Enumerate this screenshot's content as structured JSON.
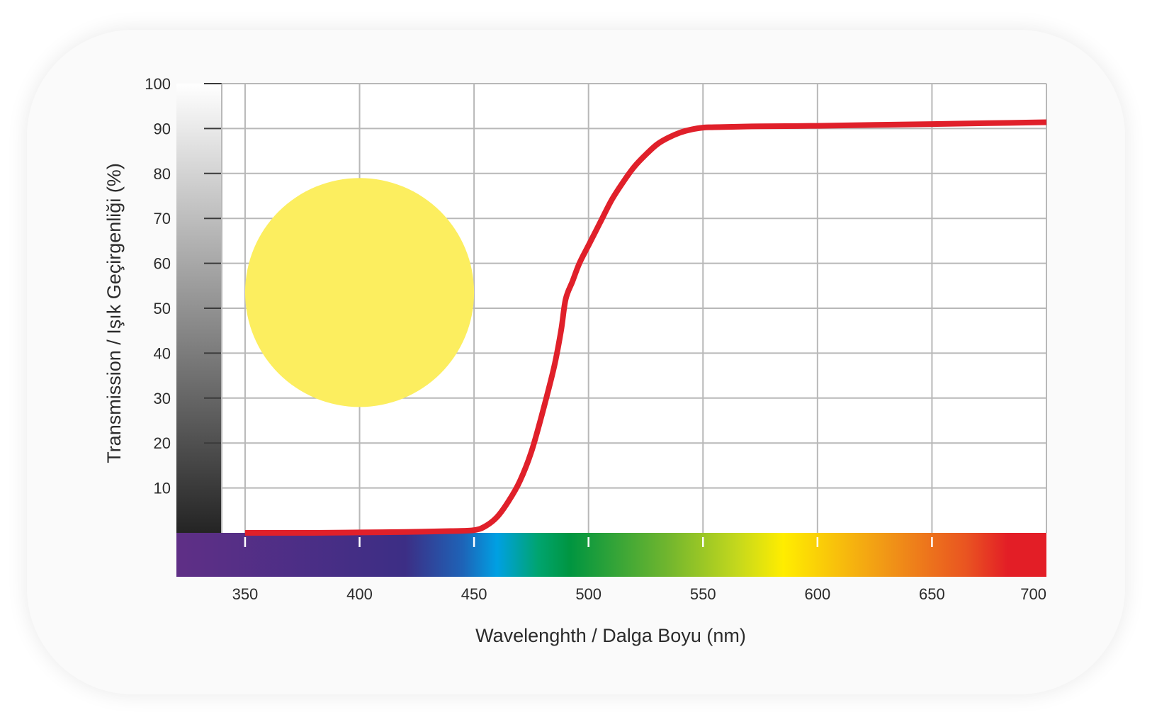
{
  "chart_data": {
    "type": "line",
    "title": "",
    "xlabel": "Wavelenghth / Dalga Boyu (nm)",
    "ylabel": "Transmission / Işık Geçirgenliği (%)",
    "xlim": [
      320,
      700
    ],
    "ylim": [
      0,
      100
    ],
    "x_ticks": [
      350,
      400,
      450,
      500,
      550,
      600,
      650,
      700
    ],
    "y_ticks": [
      10,
      20,
      30,
      40,
      50,
      60,
      70,
      80,
      90,
      100
    ],
    "x_tick_labels": [
      "350",
      "400",
      "450",
      "500",
      "550",
      "600",
      "650",
      "700"
    ],
    "y_tick_labels": [
      "10",
      "20",
      "30",
      "40",
      "50",
      "60",
      "70",
      "80",
      "90",
      "100"
    ],
    "grid": true,
    "legend": "none",
    "series": [
      {
        "color": "#e0202a",
        "x": [
          350,
          380,
          400,
          420,
          440,
          450,
          455,
          460,
          465,
          470,
          475,
          480,
          485,
          488,
          490,
          493,
          496,
          500,
          505,
          510,
          515,
          520,
          525,
          530,
          535,
          540,
          545,
          550,
          555,
          575,
          600,
          625,
          650,
          675,
          700
        ],
        "y": [
          0,
          0,
          0.1,
          0.2,
          0.4,
          0.6,
          1.5,
          3.5,
          7,
          11.5,
          18,
          27,
          37,
          45,
          52,
          56,
          60,
          64,
          69,
          74,
          78,
          81.5,
          84.2,
          86.5,
          88,
          89.1,
          89.8,
          90.2,
          90.3,
          90.5,
          90.6,
          90.8,
          91.0,
          91.2,
          91.4
        ]
      }
    ],
    "annotation": {
      "type": "filled-circle",
      "color": "#fcee5f",
      "cx": 400,
      "cy": 53.5,
      "r_x_units": 50
    },
    "spectrum_bar": {
      "stops": [
        {
          "nm": 320,
          "color": "#5f2f86"
        },
        {
          "nm": 420,
          "color": "#3c2e85"
        },
        {
          "nm": 445,
          "color": "#1e63b7"
        },
        {
          "nm": 460,
          "color": "#00a0e3"
        },
        {
          "nm": 478,
          "color": "#00a46f"
        },
        {
          "nm": 492,
          "color": "#009540"
        },
        {
          "nm": 535,
          "color": "#72b62e"
        },
        {
          "nm": 565,
          "color": "#c4d81d"
        },
        {
          "nm": 585,
          "color": "#ffed00"
        },
        {
          "nm": 630,
          "color": "#f19716"
        },
        {
          "nm": 665,
          "color": "#e95421"
        },
        {
          "nm": 683,
          "color": "#e31e26"
        },
        {
          "nm": 700,
          "color": "#e31e26"
        }
      ]
    },
    "gray_bar": {
      "top_color": "#ffffff",
      "bottom_color": "#242424"
    },
    "colors": {
      "grid": "#b8b8b8",
      "line": "#e0202a",
      "background": "#fafafa"
    }
  }
}
